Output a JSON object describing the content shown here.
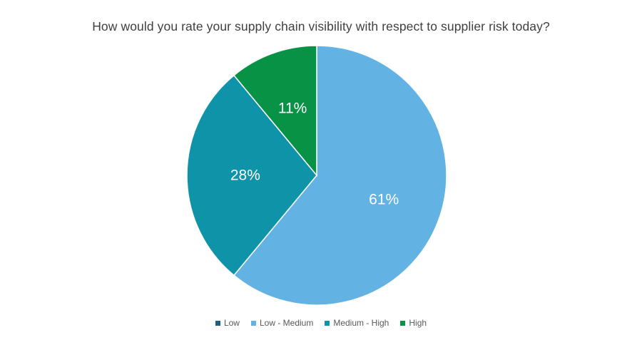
{
  "chart_data": {
    "type": "pie",
    "title": "How would you rate your supply chain visibility with respect to supplier risk today?",
    "categories": [
      "Low",
      "Low - Medium",
      "Medium - High",
      "High"
    ],
    "values": [
      0,
      61,
      28,
      11
    ],
    "labels": [
      "",
      "61%",
      "28%",
      "11%"
    ],
    "colors": [
      "#1f5f7a",
      "#62b3e4",
      "#0f93a8",
      "#079245"
    ],
    "start_angle_deg": 0,
    "direction": "clockwise",
    "legend_position": "bottom"
  }
}
